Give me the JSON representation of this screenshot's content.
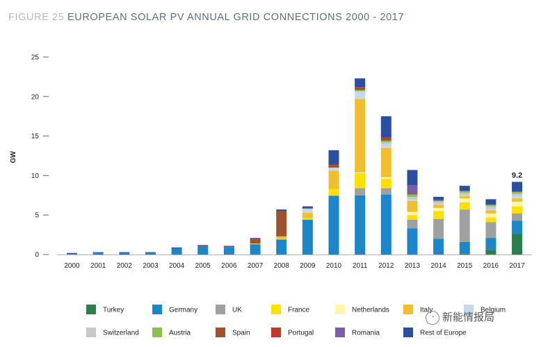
{
  "header": {
    "figure_label": "FIGURE 25",
    "title": "EUROPEAN SOLAR PV ANNUAL GRID CONNECTIONS 2000 - 2017"
  },
  "watermark": {
    "text": "新能情报局",
    "icon": "wechat-icon"
  },
  "chart_data": {
    "type": "bar",
    "stacked": true,
    "title": "EUROPEAN SOLAR PV ANNUAL GRID CONNECTIONS 2000 - 2017",
    "xlabel": "",
    "ylabel": "GW",
    "ylim": [
      0,
      25
    ],
    "yticks": [
      0,
      5,
      10,
      15,
      20,
      25
    ],
    "grid": false,
    "legend_position": "bottom",
    "categories": [
      "2000",
      "2001",
      "2002",
      "2003",
      "2004",
      "2005",
      "2006",
      "2007",
      "2008",
      "2009",
      "2010",
      "2011",
      "2012",
      "2013",
      "2014",
      "2015",
      "2016",
      "2017"
    ],
    "series": [
      {
        "name": "Turkey",
        "color": "#2e7d4f",
        "values": [
          0,
          0,
          0,
          0,
          0,
          0,
          0,
          0,
          0,
          0,
          0,
          0,
          0,
          0,
          0,
          0.1,
          0.6,
          2.6
        ]
      },
      {
        "name": "Germany",
        "color": "#1b86c8",
        "values": [
          0.1,
          0.2,
          0.2,
          0.2,
          0.7,
          1.0,
          0.9,
          1.3,
          1.9,
          4.4,
          7.4,
          7.5,
          7.6,
          3.3,
          2.0,
          1.5,
          1.5,
          1.7
        ]
      },
      {
        "name": "UK",
        "color": "#a0a0a0",
        "values": [
          0,
          0,
          0,
          0,
          0,
          0,
          0,
          0,
          0,
          0,
          0.1,
          0.9,
          0.8,
          1.1,
          2.5,
          4.1,
          2.0,
          0.9
        ]
      },
      {
        "name": "France",
        "color": "#ffe000",
        "values": [
          0,
          0,
          0,
          0,
          0,
          0,
          0,
          0,
          0.1,
          0.2,
          0.8,
          1.9,
          1.2,
          0.6,
          1.0,
          0.9,
          0.6,
          0.9
        ]
      },
      {
        "name": "Netherlands",
        "color": "#fff7a8",
        "values": [
          0,
          0,
          0,
          0,
          0,
          0,
          0,
          0,
          0,
          0,
          0,
          0.1,
          0.2,
          0.4,
          0.4,
          0.5,
          0.5,
          0.6
        ]
      },
      {
        "name": "Italy",
        "color": "#f0be2e",
        "values": [
          0,
          0,
          0,
          0,
          0,
          0,
          0,
          0.1,
          0.3,
          0.7,
          2.3,
          9.3,
          3.7,
          1.4,
          0.4,
          0.3,
          0.4,
          0.4
        ]
      },
      {
        "name": "Belgium",
        "color": "#c6d8ee",
        "values": [
          0,
          0,
          0,
          0,
          0,
          0,
          0,
          0,
          0,
          0.5,
          0.4,
          0.9,
          0.5,
          0.2,
          0.1,
          0.1,
          0.2,
          0.3
        ]
      },
      {
        "name": "Switzerland",
        "color": "#c8c8c8",
        "values": [
          0,
          0,
          0,
          0,
          0,
          0,
          0,
          0,
          0,
          0,
          0,
          0.1,
          0.2,
          0.3,
          0.3,
          0.3,
          0.3,
          0.3
        ]
      },
      {
        "name": "Austria",
        "color": "#8cc152",
        "values": [
          0,
          0,
          0,
          0,
          0,
          0,
          0,
          0,
          0,
          0,
          0,
          0.1,
          0.2,
          0.3,
          0.1,
          0.2,
          0.2,
          0.2
        ]
      },
      {
        "name": "Spain",
        "color": "#a0522d",
        "values": [
          0,
          0,
          0,
          0,
          0.1,
          0.1,
          0.1,
          0.6,
          3.2,
          0.1,
          0.4,
          0.4,
          0.3,
          0.1,
          0,
          0,
          0,
          0.1
        ]
      },
      {
        "name": "Portugal",
        "color": "#c0392b",
        "values": [
          0,
          0,
          0,
          0,
          0,
          0,
          0,
          0,
          0,
          0,
          0,
          0,
          0.1,
          0,
          0,
          0,
          0,
          0
        ]
      },
      {
        "name": "Romania",
        "color": "#7a5ea8",
        "values": [
          0,
          0,
          0,
          0,
          0,
          0,
          0,
          0,
          0,
          0,
          0,
          0,
          0,
          1.1,
          0.1,
          0.1,
          0,
          0
        ]
      },
      {
        "name": "Rest of Europe",
        "color": "#2a4f9e",
        "values": [
          0.1,
          0.1,
          0.1,
          0.1,
          0.1,
          0.1,
          0.1,
          0.1,
          0.2,
          0.2,
          1.8,
          1.1,
          2.7,
          1.9,
          0.4,
          0.6,
          0.7,
          1.2
        ]
      }
    ],
    "annotations": [
      {
        "category": "2017",
        "text": "9.2"
      }
    ]
  }
}
